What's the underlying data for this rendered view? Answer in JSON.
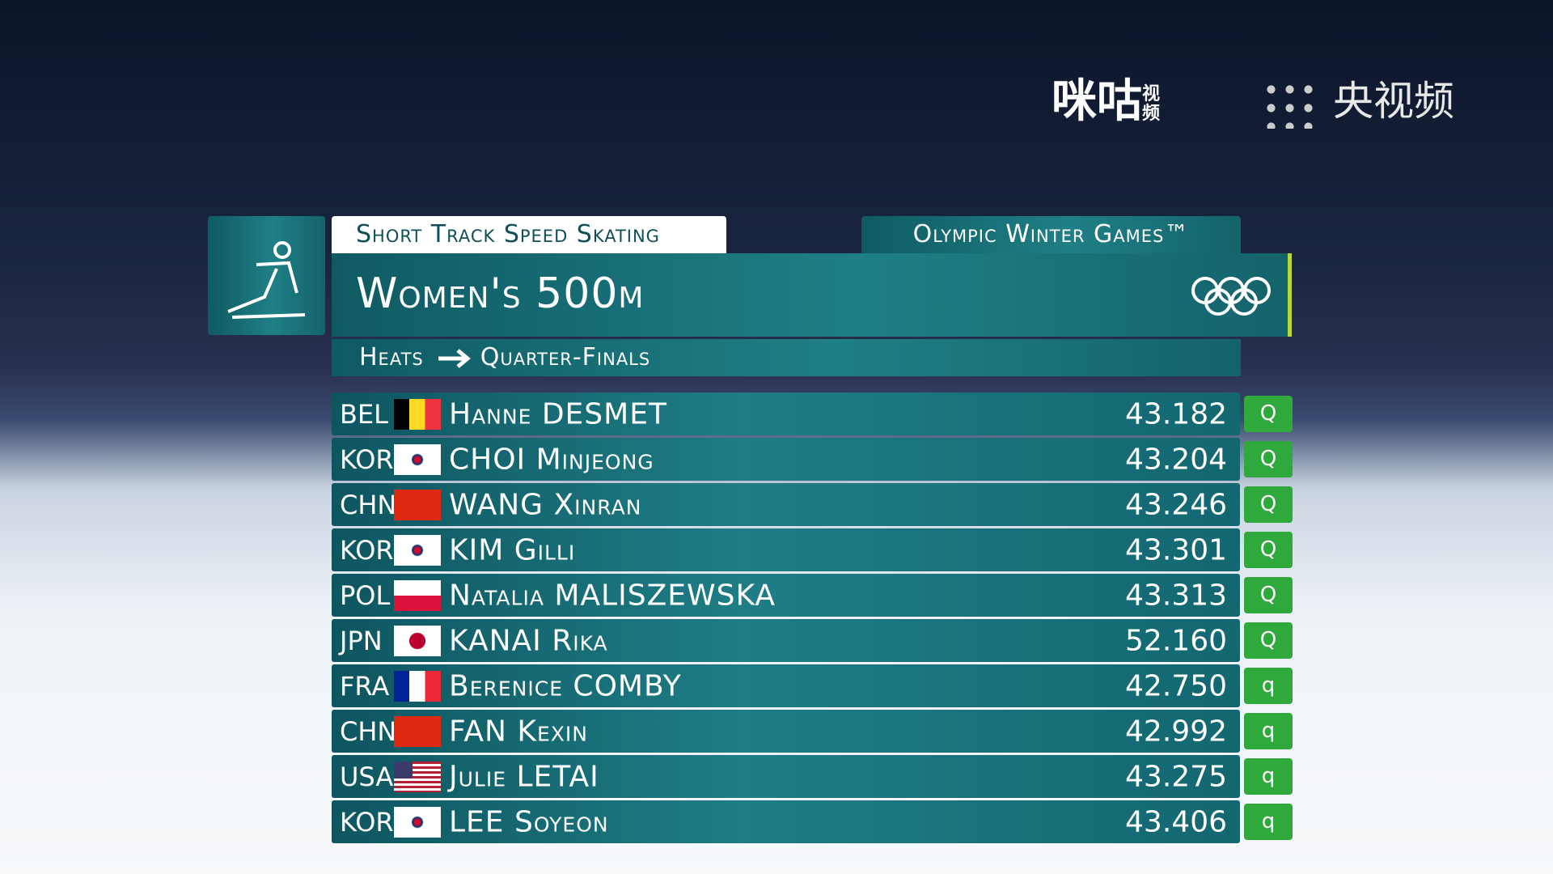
{
  "watermarks": {
    "migu": "咪咕",
    "migu_sub": "视频",
    "cctv": "央视频"
  },
  "header": {
    "sport": "Short Track Speed Skating",
    "games": "Olympic Winter Games™",
    "event": "Women's 500m",
    "round_from": "Heats",
    "round_to": "Quarter-Finals"
  },
  "table": {
    "rows": [
      [
        "BEL",
        "Hanne DESMET",
        "43.182",
        "Q"
      ],
      [
        "KOR",
        "CHOI Minjeong",
        "43.204",
        "Q"
      ],
      [
        "CHN",
        "WANG Xinran",
        "43.246",
        "Q"
      ],
      [
        "KOR",
        "KIM Gilli",
        "43.301",
        "Q"
      ],
      [
        "POL",
        "Natalia MALISZEWSKA",
        "43.313",
        "Q"
      ],
      [
        "JPN",
        "KANAI Rika",
        "52.160",
        "Q"
      ],
      [
        "FRA",
        "Berenice COMBY",
        "42.750",
        "q"
      ],
      [
        "CHN",
        "FAN Kexin",
        "42.992",
        "q"
      ],
      [
        "USA",
        "Julie LETAI",
        "43.275",
        "q"
      ],
      [
        "KOR",
        "LEE Soyeon",
        "43.406",
        "q"
      ]
    ]
  }
}
